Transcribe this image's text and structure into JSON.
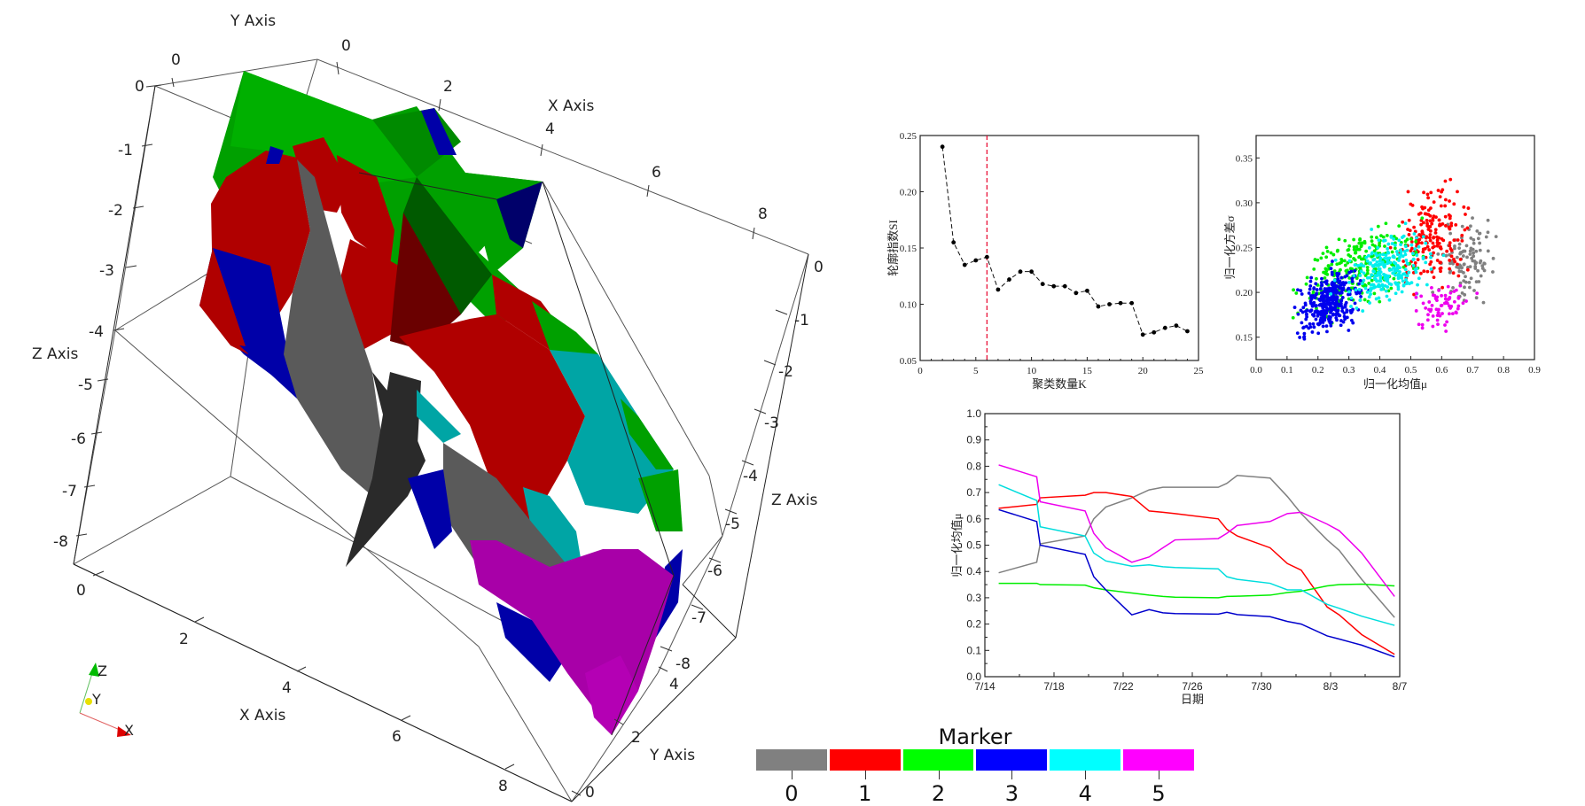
{
  "view3d": {
    "axis_labels": {
      "y_top": "Y Axis",
      "x_top": "X Axis",
      "z_left": "Z Axis",
      "z_right": "Z Axis",
      "x_bottom": "X Axis",
      "y_bottom": "Y Axis"
    },
    "z_ticks_left": [
      "0",
      "-1",
      "-2",
      "-3",
      "-4",
      "-5",
      "-6",
      "-7",
      "-8"
    ],
    "z_ticks_right": [
      "0",
      "-1",
      "-2",
      "-3",
      "-4",
      "-5",
      "-6",
      "-7",
      "-8"
    ],
    "x_ticks_top": [
      "0",
      "2",
      "4",
      "6",
      "8"
    ],
    "x_ticks_bottom": [
      "0",
      "2",
      "4",
      "6",
      "8"
    ],
    "y_ticks_top": [
      "0"
    ],
    "y_ticks_bottom": [
      "0",
      "2",
      "4"
    ],
    "orientation_widget": {
      "z": "Z",
      "y": "Y",
      "x": "X"
    },
    "colors": {
      "gray": "#5a5a5a",
      "dark_gray": "#2a2a2a",
      "red": "#b00000",
      "dark_red": "#6a0000",
      "green": "#00a000",
      "dark_green": "#005a00",
      "blue": "#0000a8",
      "dark_blue": "#00006a",
      "cyan": "#00a5a5",
      "magenta": "#a800a8"
    }
  },
  "legend": {
    "title": "Marker",
    "items": [
      {
        "label": "0",
        "color": "#808080"
      },
      {
        "label": "1",
        "color": "#ff0000"
      },
      {
        "label": "2",
        "color": "#00ff00"
      },
      {
        "label": "3",
        "color": "#0000ff"
      },
      {
        "label": "4",
        "color": "#00ffff"
      },
      {
        "label": "5",
        "color": "#ff00ff"
      }
    ]
  },
  "chart_data": [
    {
      "type": "line",
      "title": "",
      "xlabel": "聚类数量K",
      "ylabel": "轮廓指数SI",
      "x": [
        2,
        3,
        4,
        5,
        6,
        7,
        8,
        9,
        10,
        11,
        12,
        13,
        14,
        15,
        16,
        17,
        18,
        19,
        20,
        21,
        22,
        23,
        24
      ],
      "values": [
        0.24,
        0.155,
        0.135,
        0.139,
        0.142,
        0.113,
        0.122,
        0.129,
        0.129,
        0.118,
        0.116,
        0.116,
        0.11,
        0.112,
        0.098,
        0.1,
        0.101,
        0.101,
        0.073,
        0.075,
        0.079,
        0.081,
        0.076
      ],
      "xlim": [
        0,
        25
      ],
      "ylim": [
        0.05,
        0.25
      ],
      "xticks": [
        "0",
        "5",
        "10",
        "15",
        "20",
        "25"
      ],
      "yticks": [
        "0.05",
        "0.10",
        "0.15",
        "0.20",
        "0.25"
      ],
      "annotations": [
        {
          "type": "vline",
          "x": 6,
          "style": "dashed",
          "color": "#e8002a"
        }
      ],
      "line_style": "dashed",
      "marker": "circle",
      "color": "#000000"
    },
    {
      "type": "scatter",
      "title": "",
      "xlabel": "归一化均值μ",
      "ylabel": "归一化方差σ",
      "xlim": [
        0.0,
        0.9
      ],
      "ylim": [
        0.125,
        0.375
      ],
      "xticks": [
        "0.0",
        "0.1",
        "0.2",
        "0.3",
        "0.4",
        "0.5",
        "0.6",
        "0.7",
        "0.8",
        "0.9"
      ],
      "yticks": [
        "0.15",
        "0.20",
        "0.25",
        "0.30",
        "0.35"
      ],
      "series": [
        {
          "name": "0",
          "color": "#808080",
          "center": [
            0.68,
            0.235
          ],
          "spread": [
            0.07,
            0.035
          ],
          "count": 110
        },
        {
          "name": "1",
          "color": "#ff0000",
          "center": [
            0.57,
            0.26
          ],
          "spread": [
            0.09,
            0.04
          ],
          "count": 190
        },
        {
          "name": "2",
          "color": "#00ee00",
          "center": [
            0.33,
            0.225
          ],
          "spread": [
            0.14,
            0.035
          ],
          "count": 260
        },
        {
          "name": "3",
          "color": "#0000ee",
          "center": [
            0.24,
            0.19
          ],
          "spread": [
            0.08,
            0.025
          ],
          "count": 340
        },
        {
          "name": "4",
          "color": "#00eeee",
          "center": [
            0.42,
            0.225
          ],
          "spread": [
            0.11,
            0.03
          ],
          "count": 230
        },
        {
          "name": "5",
          "color": "#ee00ee",
          "center": [
            0.6,
            0.185
          ],
          "spread": [
            0.07,
            0.02
          ],
          "count": 70
        }
      ]
    },
    {
      "type": "line",
      "title": "",
      "xlabel": "日期",
      "ylabel": "归一化均值μ",
      "categories": [
        "7/14",
        "7/18",
        "7/22",
        "7/26",
        "7/30",
        "8/3",
        "8/7"
      ],
      "xlim": [
        0,
        24
      ],
      "ylim": [
        0.0,
        1.0
      ],
      "yticks": [
        "0.0",
        "0.1",
        "0.2",
        "0.3",
        "0.4",
        "0.5",
        "0.6",
        "0.7",
        "0.8",
        "0.9",
        "1.0"
      ],
      "x": [
        0.8,
        3.0,
        3.2,
        5.8,
        6.3,
        7.0,
        8.5,
        9.5,
        10.3,
        11.0,
        13.5,
        14.0,
        14.6,
        16.5,
        17.5,
        18.3,
        19.8,
        20.5,
        21.8,
        23.7
      ],
      "series": [
        {
          "name": "0",
          "color": "#808080",
          "values": [
            0.395,
            0.435,
            0.505,
            0.535,
            0.6,
            0.645,
            0.68,
            0.71,
            0.72,
            0.72,
            0.72,
            0.735,
            0.765,
            0.755,
            0.685,
            0.62,
            0.52,
            0.48,
            0.37,
            0.225
          ]
        },
        {
          "name": "1",
          "color": "#ff0000",
          "values": [
            0.64,
            0.655,
            0.68,
            0.69,
            0.7,
            0.7,
            0.685,
            0.63,
            0.625,
            0.62,
            0.6,
            0.56,
            0.535,
            0.49,
            0.43,
            0.405,
            0.265,
            0.235,
            0.16,
            0.085
          ]
        },
        {
          "name": "2",
          "color": "#00ee00",
          "values": [
            0.355,
            0.355,
            0.35,
            0.348,
            0.338,
            0.33,
            0.318,
            0.31,
            0.305,
            0.302,
            0.3,
            0.305,
            0.306,
            0.31,
            0.32,
            0.325,
            0.345,
            0.35,
            0.352,
            0.345
          ]
        },
        {
          "name": "3",
          "color": "#0000cc",
          "values": [
            0.635,
            0.59,
            0.5,
            0.465,
            0.38,
            0.33,
            0.235,
            0.255,
            0.243,
            0.24,
            0.238,
            0.245,
            0.236,
            0.228,
            0.21,
            0.2,
            0.155,
            0.143,
            0.12,
            0.075
          ]
        },
        {
          "name": "4",
          "color": "#00dddd",
          "values": [
            0.73,
            0.67,
            0.57,
            0.535,
            0.47,
            0.44,
            0.42,
            0.425,
            0.418,
            0.415,
            0.41,
            0.38,
            0.37,
            0.355,
            0.33,
            0.33,
            0.275,
            0.26,
            0.23,
            0.195
          ]
        },
        {
          "name": "5",
          "color": "#ee00ee",
          "values": [
            0.805,
            0.76,
            0.665,
            0.63,
            0.545,
            0.49,
            0.435,
            0.455,
            0.49,
            0.52,
            0.525,
            0.545,
            0.575,
            0.59,
            0.62,
            0.625,
            0.58,
            0.555,
            0.47,
            0.305
          ]
        }
      ]
    }
  ]
}
